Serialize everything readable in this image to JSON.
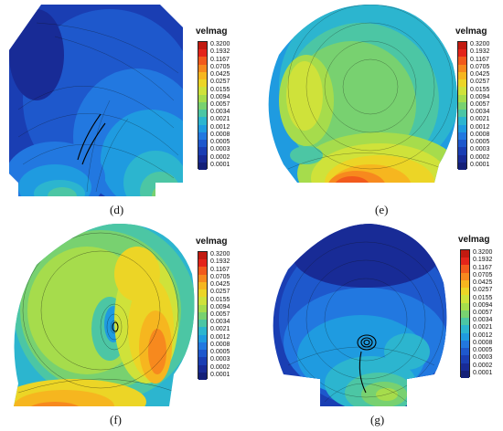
{
  "panels": [
    {
      "caption": "(d)"
    },
    {
      "caption": "(e)"
    },
    {
      "caption": "(f)"
    },
    {
      "caption": "(g)"
    }
  ],
  "legend": {
    "title": "velmag",
    "levels": [
      "0.3200",
      "0.1932",
      "0.1167",
      "0.0705",
      "0.0425",
      "0.0257",
      "0.0155",
      "0.0094",
      "0.0057",
      "0.0034",
      "0.0021",
      "0.0012",
      "0.0008",
      "0.0005",
      "0.0003",
      "0.0002",
      "0.0001"
    ],
    "colors": [
      "#c21a10",
      "#e4241a",
      "#f25a1c",
      "#f7891e",
      "#f6b61f",
      "#ecd526",
      "#cfe23a",
      "#a6dc4c",
      "#78d170",
      "#4cc6a4",
      "#2cb5cf",
      "#1f9be0",
      "#2278e0",
      "#1e58cc",
      "#1a3eb3",
      "#182b96",
      "#142078"
    ]
  }
}
